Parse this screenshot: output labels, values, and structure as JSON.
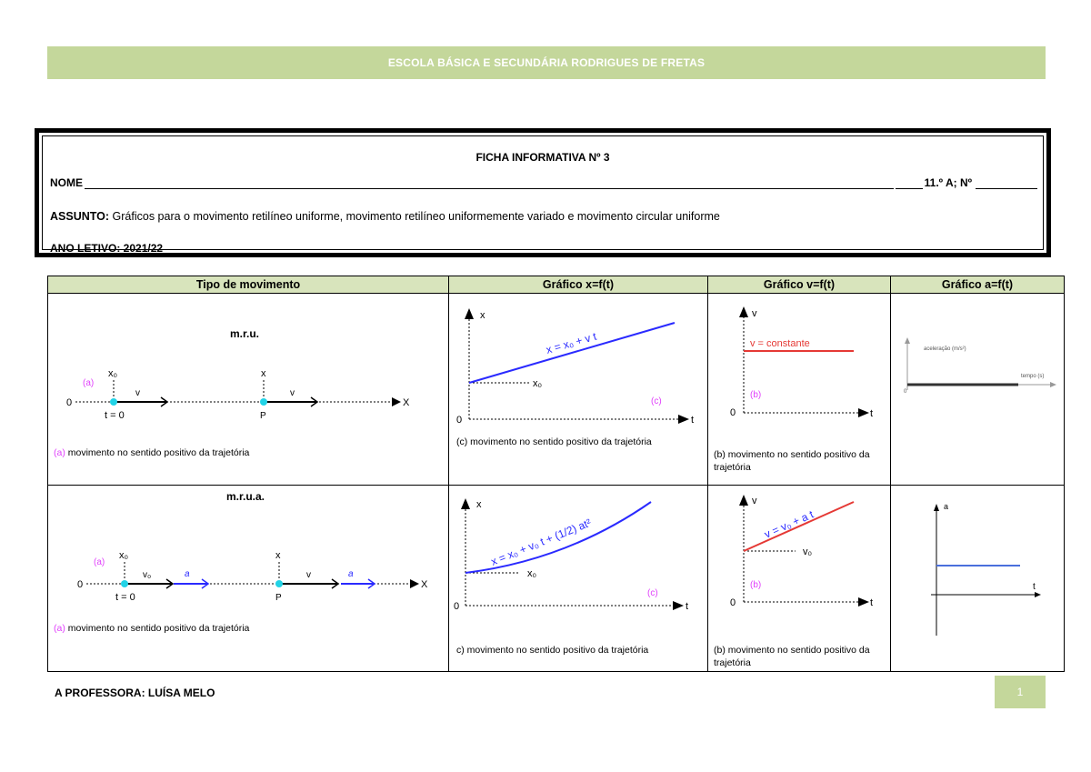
{
  "header": {
    "school": "ESCOLA BÁSICA E SECUNDÁRIA RODRIGUES DE FRETAS"
  },
  "info": {
    "title": "FICHA INFORMATIVA Nº 3",
    "nome_label": "NOME",
    "class_label": "11.º A; Nº",
    "assunto_label": "ASSUNTO:",
    "assunto_text": " Gráficos para o movimento retilíneo uniforme, movimento retilíneo uniformemente variado e movimento circular uniforme",
    "ano_label": "ANO LETIVO: 2021/22"
  },
  "table": {
    "headers": [
      "Tipo de movimento",
      "Gráfico x=f(t)",
      "Gráfico v=f(t)",
      "Gráfico a=f(t)"
    ],
    "row1": {
      "title": "m.r.u.",
      "tag_a": "(a)",
      "x0": "x₀",
      "x": "x",
      "v": "v",
      "zero": "0",
      "t0": "t = 0",
      "P": "P",
      "X": "X",
      "caption_a_tag": "(a)",
      "caption_a": " movimento no sentido positivo da trajetória",
      "xt_axis_x": "x",
      "xt_axis_t": "t",
      "xt_zero": "0",
      "xt_eq": "x = x₀ + v t",
      "xt_x0": "x₀",
      "xt_tag": "(c)",
      "caption_c": "(c) movimento no sentido positivo da trajetória",
      "vt_axis_v": "v",
      "vt_axis_t": "t",
      "vt_zero": "0",
      "vt_label": "v = constante",
      "vt_tag": "(b)",
      "caption_b": "(b) movimento no sentido positivo da trajetória",
      "at_ylabel": "aceleração (m/s²)",
      "at_xlabel": "tempo (s)",
      "at_zero": "0"
    },
    "row2": {
      "title": "m.r.u.a.",
      "tag_a": "(a)",
      "x0": "x₀",
      "x": "x",
      "v0": "v₀",
      "v": "v",
      "a": "a",
      "zero": "0",
      "t0": "t = 0",
      "P": "P",
      "X": "X",
      "caption_a_tag": "(a)",
      "caption_a": " movimento no sentido positivo da trajetória",
      "xt_axis_x": "x",
      "xt_axis_t": "t",
      "xt_zero": "0",
      "xt_eq": "x = x₀ + v₀ t + (1/2) at²",
      "xt_x0": "x₀",
      "xt_tag": "(c)",
      "caption_c": "c) movimento no sentido positivo da trajetória",
      "vt_axis_v": "v",
      "vt_axis_t": "t",
      "vt_zero": "0",
      "vt_eq": "v = v₀ + a t",
      "vt_v0": "v₀",
      "vt_tag": "(b)",
      "caption_b": "(b) movimento no sentido positivo da trajetória",
      "at_axis_a": "a",
      "at_axis_t": "t"
    }
  },
  "footer": {
    "teacher": "A PROFESSORA: LUÍSA MELO",
    "page": "1"
  },
  "colors": {
    "accent": "#c4d79b",
    "header_cell": "#d8e4bc",
    "blue_line": "#2a2aff",
    "red_line": "#e53935",
    "cyan_dot": "#22d3e6",
    "pink": "#e040fb"
  }
}
